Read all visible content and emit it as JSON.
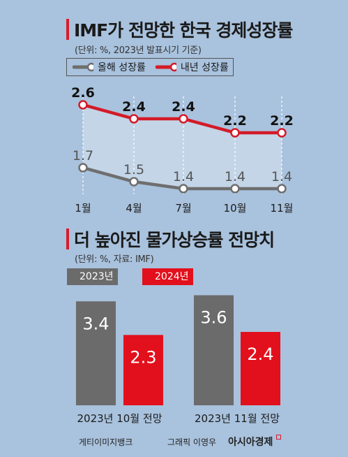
{
  "chart_data": [
    {
      "type": "line",
      "title": "IMF가 전망한 한국 경제성장률",
      "subtitle": "(단위: %, 2023년 발표시기 기준)",
      "categories": [
        "1월",
        "4월",
        "7월",
        "10월",
        "11월"
      ],
      "series": [
        {
          "name": "올해 성장률",
          "values": [
            1.7,
            1.5,
            1.4,
            1.4,
            1.4
          ],
          "color": "#6e6e6e"
        },
        {
          "name": "내년 성장률",
          "values": [
            2.6,
            2.4,
            2.4,
            2.2,
            2.2
          ],
          "color": "#d41a28"
        }
      ],
      "value_labels": {
        "this_year": [
          "1.7",
          "1.5",
          "1.4",
          "1.4",
          "1.4"
        ],
        "next_year": [
          "2.6",
          "2.4",
          "2.4",
          "2.2",
          "2.2"
        ]
      },
      "ylim": [
        1.0,
        3.0
      ],
      "legend": "top",
      "grid": "vertical dashed"
    },
    {
      "type": "bar",
      "title": "더 높아진 물가상승률 전망치",
      "subtitle": "(단위: %, 자료: IMF)",
      "categories": [
        "2023년 10월 전망",
        "2023년 11월 전망"
      ],
      "series": [
        {
          "name": "2023년",
          "values": [
            3.4,
            3.6
          ],
          "color": "#6b6b6b"
        },
        {
          "name": "2024년",
          "values": [
            2.3,
            2.4
          ],
          "color": "#e2101c"
        }
      ],
      "value_labels": {
        "y2023": [
          "3.4",
          "3.6"
        ],
        "y2024": [
          "2.3",
          "2.4"
        ]
      },
      "ylim": [
        0,
        4.0
      ],
      "legend": "top-left"
    }
  ],
  "footer": {
    "credit": "게티이미지뱅크",
    "graphic_credit": "그래픽 이영우",
    "brand": "아시아경제"
  },
  "colors": {
    "background": "#a9c2dd",
    "accent": "#d91b2a",
    "gray": "#6b6b6b"
  }
}
